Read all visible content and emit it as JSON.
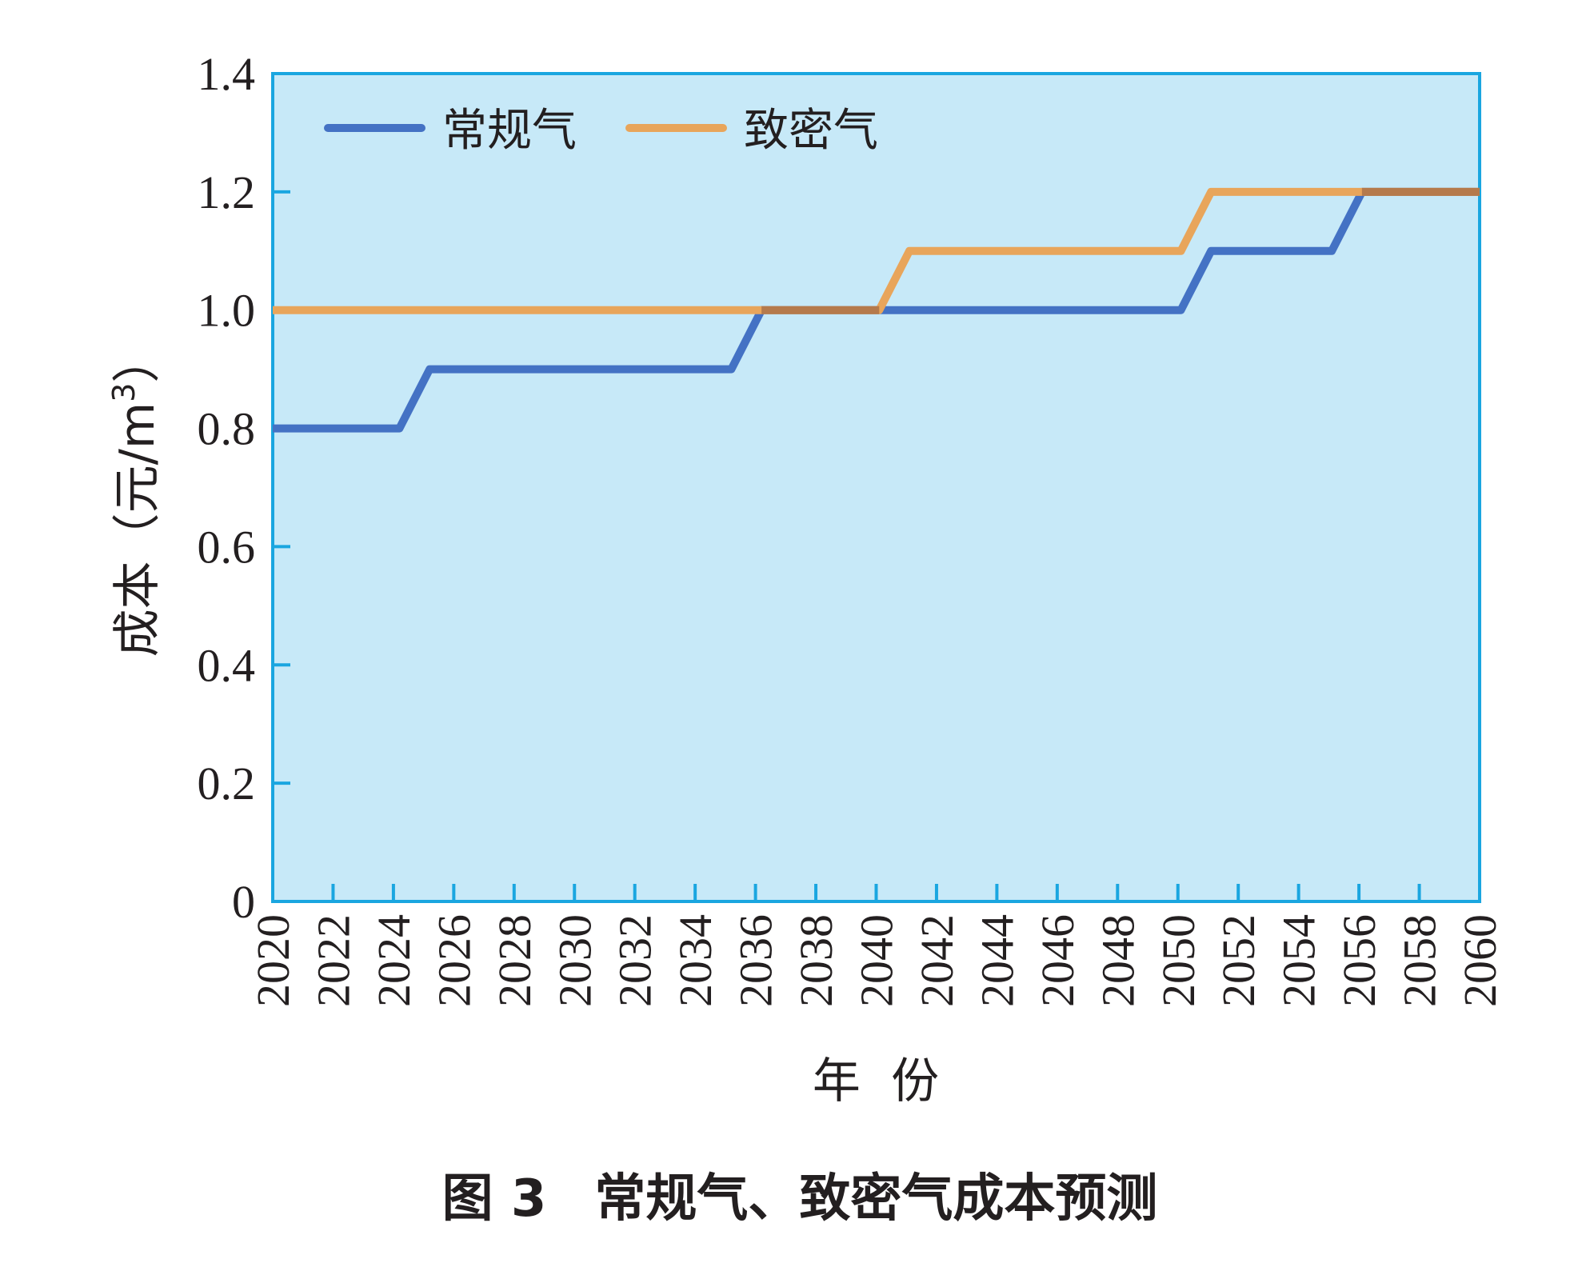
{
  "chart_data": {
    "type": "line",
    "step": true,
    "caption_label": "图 3",
    "caption_text": "常规气、致密气成本预测",
    "xlabel": "年  份",
    "ylabel_main": "成本（元/m",
    "ylabel_sup": "3",
    "ylabel_close": "）",
    "xlim": [
      2020,
      2060
    ],
    "ylim": [
      0,
      1.4
    ],
    "x_ticks": [
      "2020",
      "2022",
      "2024",
      "2026",
      "2028",
      "2030",
      "2032",
      "2034",
      "2036",
      "2038",
      "2040",
      "2042",
      "2044",
      "2046",
      "2048",
      "2050",
      "2052",
      "2054",
      "2056",
      "2058",
      "2060"
    ],
    "y_ticks": [
      "0",
      "0.2",
      "0.4",
      "0.6",
      "0.8",
      "1.0",
      "1.2",
      "1.4"
    ],
    "grid": false,
    "legend_position": "top-left",
    "background_color": "#c7e9f8",
    "axis_color": "#1aa6e0",
    "series": [
      {
        "name": "常规气",
        "color": "#4472c4",
        "points": [
          [
            2020,
            0.8
          ],
          [
            2024.2,
            0.8
          ],
          [
            2025.2,
            0.9
          ],
          [
            2035.2,
            0.9
          ],
          [
            2036.2,
            1.0
          ],
          [
            2050.1,
            1.0
          ],
          [
            2051.1,
            1.1
          ],
          [
            2055.1,
            1.1
          ],
          [
            2056.1,
            1.2
          ],
          [
            2060,
            1.2
          ]
        ]
      },
      {
        "name": "致密气",
        "color": "#e8a55b",
        "points": [
          [
            2020,
            1.0
          ],
          [
            2040.1,
            1.0
          ],
          [
            2041.1,
            1.1
          ],
          [
            2050.1,
            1.1
          ],
          [
            2051.1,
            1.2
          ],
          [
            2060,
            1.2
          ]
        ]
      }
    ],
    "overlap_color": "#b57a4c"
  }
}
